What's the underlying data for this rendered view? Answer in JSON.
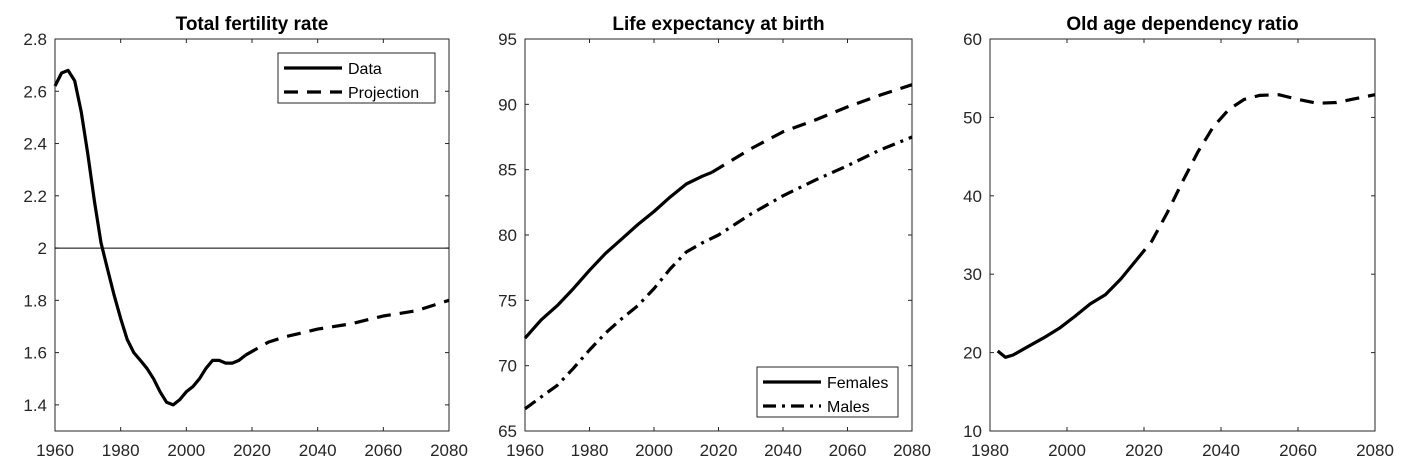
{
  "chart_data": [
    {
      "type": "line",
      "title": "Total fertility rate",
      "xlim": [
        1960,
        2080
      ],
      "ylim": [
        1.3,
        2.8
      ],
      "xticks": [
        "1960",
        "1980",
        "2000",
        "2020",
        "2040",
        "2060",
        "2080"
      ],
      "yticks": [
        "1.4",
        "1.6",
        "1.8",
        "2",
        "2.2",
        "2.4",
        "2.6",
        "2.8"
      ],
      "reference_line": {
        "y": 2
      },
      "legend": {
        "position": "top-right",
        "entries": [
          "Data",
          "Projection"
        ]
      },
      "series": [
        {
          "name": "Data",
          "style": "solid",
          "x": [
            1960,
            1962,
            1964,
            1966,
            1968,
            1970,
            1972,
            1974,
            1976,
            1978,
            1980,
            1982,
            1984,
            1986,
            1988,
            1990,
            1992,
            1994,
            1996,
            1998,
            2000,
            2002,
            2004,
            2006,
            2008,
            2010,
            2012,
            2014,
            2016,
            2018
          ],
          "y": [
            2.62,
            2.67,
            2.68,
            2.64,
            2.52,
            2.36,
            2.18,
            2.02,
            1.92,
            1.82,
            1.73,
            1.65,
            1.6,
            1.57,
            1.54,
            1.5,
            1.45,
            1.41,
            1.4,
            1.42,
            1.45,
            1.47,
            1.5,
            1.54,
            1.57,
            1.57,
            1.56,
            1.56,
            1.57,
            1.59
          ]
        },
        {
          "name": "Projection",
          "style": "dashed",
          "x": [
            2018,
            2025,
            2030,
            2040,
            2050,
            2060,
            2070,
            2080
          ],
          "y": [
            1.59,
            1.64,
            1.66,
            1.69,
            1.71,
            1.74,
            1.76,
            1.8
          ]
        }
      ]
    },
    {
      "type": "line",
      "title": "Life expectancy at birth",
      "xlim": [
        1960,
        2080
      ],
      "ylim": [
        65,
        95
      ],
      "xticks": [
        "1960",
        "1980",
        "2000",
        "2020",
        "2040",
        "2060",
        "2080"
      ],
      "yticks": [
        "65",
        "70",
        "75",
        "80",
        "85",
        "90",
        "95"
      ],
      "legend": {
        "position": "bottom-right",
        "entries": [
          "Females",
          "Males"
        ]
      },
      "series": [
        {
          "name": "Females",
          "style": "solid",
          "x": [
            1960,
            1965,
            1970,
            1975,
            1980,
            1985,
            1990,
            1995,
            2000,
            2005,
            2010,
            2015,
            2018
          ],
          "y": [
            72.1,
            73.5,
            74.6,
            75.9,
            77.3,
            78.6,
            79.7,
            80.8,
            81.8,
            82.9,
            83.9,
            84.5,
            84.8
          ]
        },
        {
          "name": "",
          "style": "dashed",
          "x": [
            2018,
            2030,
            2040,
            2050,
            2060,
            2070,
            2080
          ],
          "y": [
            84.8,
            86.6,
            87.9,
            88.8,
            89.8,
            90.7,
            91.5
          ]
        },
        {
          "name": "Males",
          "style": "dashdot",
          "x": [
            1960,
            1965,
            1970,
            1975,
            1980,
            1985,
            1990,
            1995,
            2000,
            2005,
            2010,
            2015,
            2020,
            2030,
            2040,
            2050,
            2060,
            2070,
            2080
          ],
          "y": [
            66.7,
            67.6,
            68.5,
            69.8,
            71.2,
            72.5,
            73.6,
            74.6,
            75.9,
            77.4,
            78.7,
            79.4,
            80.0,
            81.6,
            83.0,
            84.2,
            85.3,
            86.5,
            87.5
          ]
        }
      ]
    },
    {
      "type": "line",
      "title": "Old age dependency ratio",
      "xlim": [
        1980,
        2080
      ],
      "ylim": [
        10,
        60
      ],
      "xticks": [
        "1980",
        "2000",
        "2020",
        "2040",
        "2060",
        "2080"
      ],
      "yticks": [
        "10",
        "20",
        "30",
        "40",
        "50",
        "60"
      ],
      "series": [
        {
          "name": "",
          "style": "solid",
          "x": [
            1982,
            1984,
            1986,
            1990,
            1994,
            1998,
            2002,
            2006,
            2010,
            2014,
            2018
          ],
          "y": [
            20.2,
            19.4,
            19.7,
            20.8,
            21.9,
            23.1,
            24.6,
            26.2,
            27.4,
            29.4,
            31.8
          ]
        },
        {
          "name": "",
          "style": "dashed",
          "x": [
            2018,
            2022,
            2026,
            2030,
            2034,
            2038,
            2042,
            2046,
            2050,
            2055,
            2060,
            2065,
            2070,
            2075,
            2080
          ],
          "y": [
            31.8,
            34.2,
            37.8,
            41.8,
            45.6,
            48.8,
            51.0,
            52.3,
            52.8,
            52.9,
            52.3,
            51.8,
            51.9,
            52.4,
            52.9
          ]
        }
      ]
    }
  ]
}
